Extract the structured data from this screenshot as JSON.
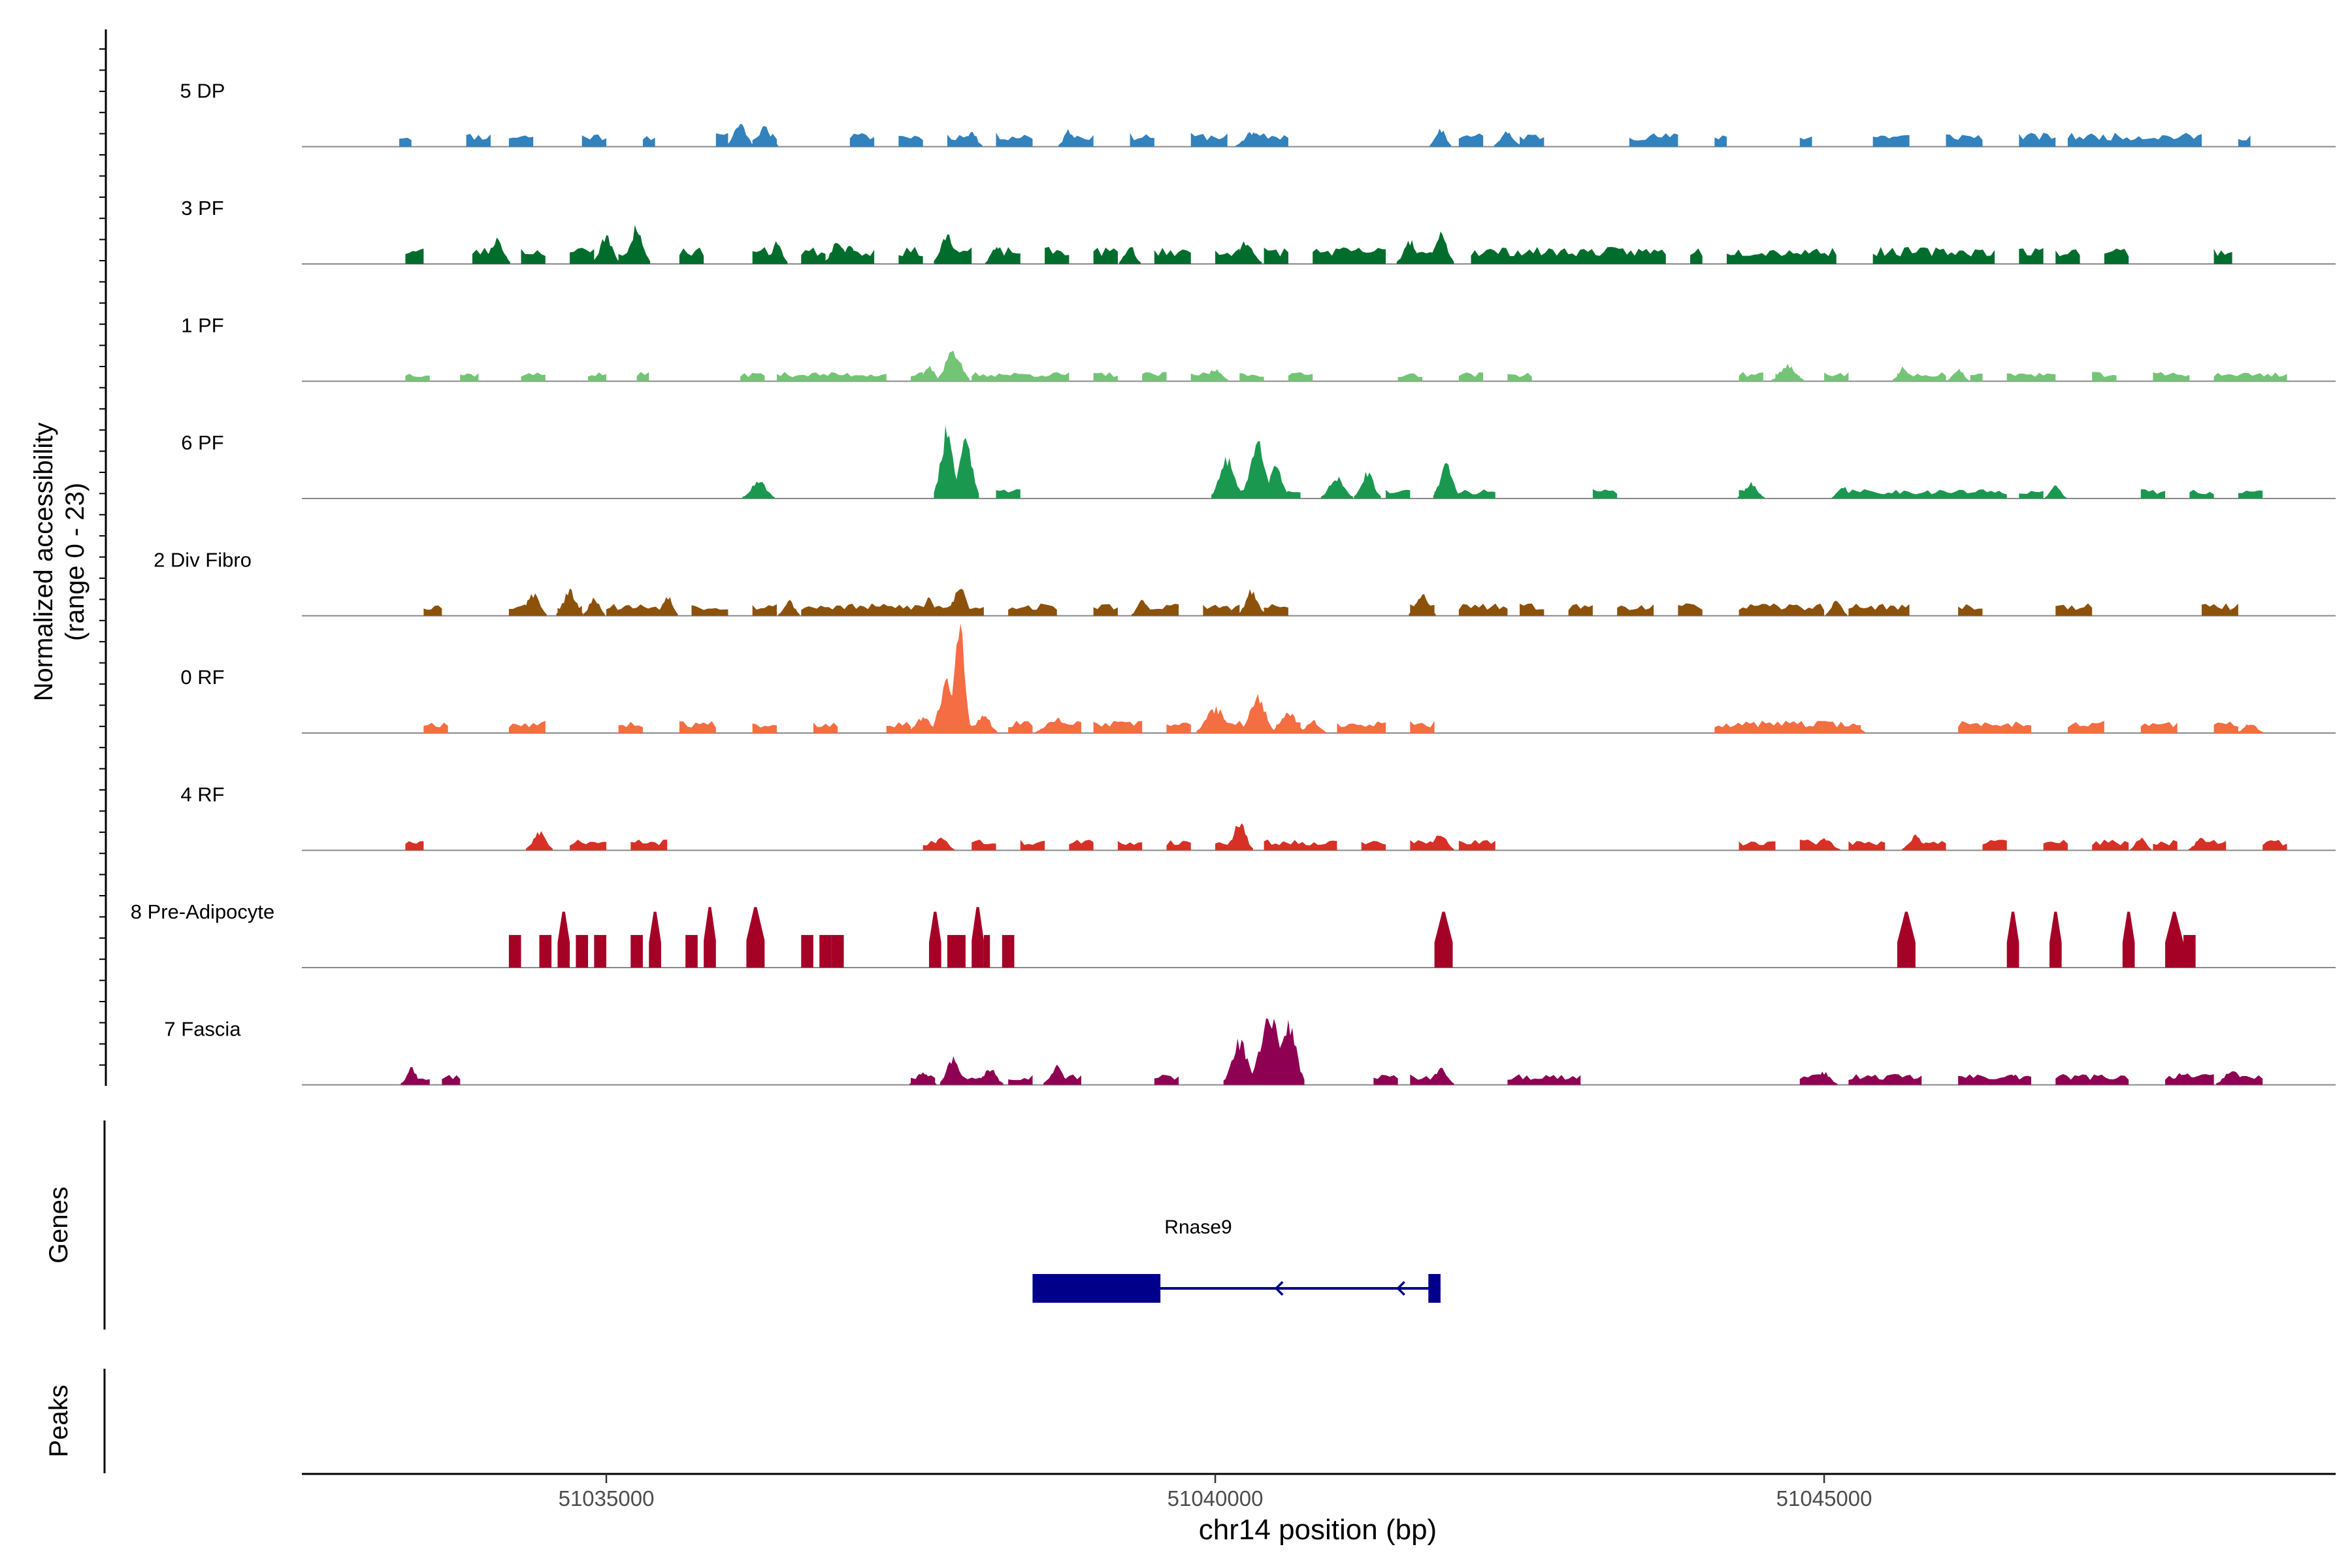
{
  "chart_data": {
    "type": "area",
    "title": "",
    "ylabel_line1": "Normalized accessibility",
    "ylabel_line2": "(range 0 - 23)",
    "xlabel": "chr14 position (bp)",
    "xlim": [
      51032500,
      51049200
    ],
    "ylim": [
      0,
      23
    ],
    "xticks": [
      51035000,
      51040000,
      51045000
    ],
    "xtick_labels": [
      "51035000",
      "51040000",
      "51045000"
    ],
    "gene_panel_label": "Genes",
    "peak_panel_label": "Peaks",
    "gene": {
      "name": "Rnase9",
      "start": 51038500,
      "end": 51041850,
      "strand": "-",
      "exons": [
        [
          51038500,
          51039550
        ],
        [
          51041750,
          51041850
        ]
      ],
      "color": "#00008B"
    },
    "tracks": [
      {
        "name": "5 DP",
        "color": "#3182BD",
        "seed": 11,
        "base": [
          51033300,
          51033400,
          51033850,
          51034050,
          51034200,
          51034400,
          51034800,
          51035000,
          51035300,
          51035400,
          51035900,
          51036000,
          51036200,
          51036400,
          51037000,
          51037200,
          51037400,
          51037600,
          51037800,
          51038000,
          51038200,
          51038500,
          51038800,
          51039000,
          51039300,
          51039500,
          51039800,
          51040100,
          51040300,
          51040600,
          51042000,
          51042200,
          51042500,
          51042700,
          51043400,
          51043800,
          51044100,
          51044200,
          51044800,
          51044900,
          51045400,
          51045700,
          51046000,
          51046300,
          51046600,
          51046900,
          51047000,
          51048100,
          51048400,
          51048500,
          51048800
        ],
        "base_h": 0.9,
        "peaks": [
          [
            51036100,
            1.8,
            50
          ],
          [
            51036300,
            1.5,
            50
          ],
          [
            51038000,
            1.2,
            40
          ],
          [
            51038800,
            1.3,
            40
          ],
          [
            51040300,
            1.1,
            60
          ],
          [
            51041850,
            1.4,
            40
          ],
          [
            51042400,
            1.2,
            50
          ]
        ]
      },
      {
        "name": "3 PF",
        "color": "#006D2C",
        "seed": 23,
        "base": [
          51033350,
          51033500,
          51033900,
          51034100,
          51034300,
          51034500,
          51034700,
          51034900,
          51035100,
          51035300,
          51035600,
          51035800,
          51036200,
          51036400,
          51036600,
          51036800,
          51037000,
          51037200,
          51037400,
          51037600,
          51037800,
          51038000,
          51038200,
          51038400,
          51038600,
          51038800,
          51039000,
          51039200,
          51039500,
          51039800,
          51040000,
          51040200,
          51040400,
          51040600,
          51040800,
          51041400,
          51041600,
          51041800,
          51042100,
          51043700,
          51043900,
          51044000,
          51044200,
          51045100,
          51045400,
          51046400,
          51046600,
          51046800,
          51046900,
          51047100,
          51047300,
          51047500,
          51048200,
          51048350,
          51048800
        ],
        "base_h": 1.1,
        "peaks": [
          [
            51034100,
            2.0,
            50
          ],
          [
            51035000,
            2.2,
            50
          ],
          [
            51035250,
            3.0,
            50
          ],
          [
            51036400,
            1.8,
            40
          ],
          [
            51036900,
            1.8,
            50
          ],
          [
            51037000,
            1.5,
            40
          ],
          [
            51037800,
            2.5,
            50
          ],
          [
            51038200,
            1.4,
            40
          ],
          [
            51039300,
            1.5,
            40
          ],
          [
            51040250,
            1.8,
            60
          ],
          [
            51041600,
            1.8,
            50
          ],
          [
            51041850,
            2.4,
            50
          ]
        ]
      },
      {
        "name": "1 PF",
        "color": "#74C476",
        "seed": 37,
        "base": [
          51033350,
          51033550,
          51033800,
          51033950,
          51034300,
          51034500,
          51034850,
          51035000,
          51035250,
          51035350,
          51036100,
          51036300,
          51036400,
          51037300,
          51037500,
          51037600,
          51037800,
          51037950,
          51038000,
          51038800,
          51039000,
          51039200,
          51039400,
          51039600,
          51039800,
          51040000,
          51040200,
          51040400,
          51040600,
          51040800,
          51041500,
          51041700,
          51042000,
          51042200,
          51042400,
          51042600,
          51044300,
          51044500,
          51044600,
          51044800,
          51045000,
          51045200,
          51045600,
          51046000,
          51046200,
          51046300,
          51046500,
          51046900,
          51047200,
          51047400,
          51047700,
          51048000,
          51048200,
          51048800
        ],
        "base_h": 0.6,
        "peaks": [
          [
            51037850,
            2.5,
            60
          ],
          [
            51037650,
            1.2,
            40
          ],
          [
            51040000,
            1.0,
            50
          ],
          [
            51044700,
            1.3,
            60
          ],
          [
            51045650,
            1.1,
            40
          ],
          [
            51046100,
            1.0,
            40
          ]
        ]
      },
      {
        "name": "6 PF",
        "color": "#1A9850",
        "seed": 41,
        "base": [
          51036200,
          51036300,
          51037850,
          51038050,
          51038200,
          51038400,
          51040100,
          51040300,
          51040500,
          51040700,
          51041400,
          51041600,
          51041800,
          51042300,
          51043100,
          51043300,
          51044300,
          51044400,
          51045200,
          51046500,
          51046600,
          51046800,
          51047600,
          51047800,
          51048000,
          51048200,
          51048400,
          51048600
        ],
        "base_h": 0.6,
        "peaks": [
          [
            51036250,
            1.4,
            60
          ],
          [
            51037800,
            5.5,
            50
          ],
          [
            51037950,
            5.0,
            50
          ],
          [
            51040100,
            3.2,
            60
          ],
          [
            51040350,
            4.5,
            60
          ],
          [
            51040500,
            2.5,
            50
          ],
          [
            51041000,
            1.7,
            60
          ],
          [
            51041250,
            2.0,
            50
          ],
          [
            51041900,
            2.8,
            50
          ],
          [
            51044400,
            1.2,
            50
          ],
          [
            51045150,
            1.0,
            40
          ],
          [
            51046900,
            1.0,
            40
          ]
        ]
      },
      {
        "name": "2 Div Fibro",
        "color": "#8C510A",
        "seed": 53,
        "base": [
          51033500,
          51033650,
          51034200,
          51034400,
          51034600,
          51034800,
          51035000,
          51035500,
          51035700,
          51036000,
          51036200,
          51036400,
          51036600,
          51037600,
          51037700,
          51038100,
          51038300,
          51038700,
          51039000,
          51039200,
          51039400,
          51039700,
          51039900,
          51040200,
          51040400,
          51040600,
          51041600,
          51041800,
          51042000,
          51042400,
          51042500,
          51042700,
          51042900,
          51043100,
          51043300,
          51043600,
          51043800,
          51044000,
          51044300,
          51045000,
          51045200,
          51045700,
          51046100,
          51046300,
          51046900,
          51047200,
          51048100,
          51048400
        ],
        "base_h": 0.8,
        "peaks": [
          [
            51034400,
            1.8,
            50
          ],
          [
            51034700,
            2.0,
            50
          ],
          [
            51034900,
            1.5,
            40
          ],
          [
            51035500,
            1.6,
            40
          ],
          [
            51036500,
            1.3,
            40
          ],
          [
            51037650,
            1.5,
            40
          ],
          [
            51037900,
            2.3,
            50
          ],
          [
            51039400,
            1.2,
            40
          ],
          [
            51040300,
            2.0,
            50
          ],
          [
            51041700,
            1.7,
            50
          ],
          [
            51045100,
            1.2,
            40
          ]
        ]
      },
      {
        "name": "0 RF",
        "color": "#F46D43",
        "seed": 67,
        "base": [
          51033500,
          51033700,
          51034200,
          51034500,
          51035100,
          51035300,
          51035600,
          51035900,
          51036200,
          51036400,
          51036700,
          51036900,
          51037300,
          51037500,
          51037700,
          51038100,
          51038300,
          51038500,
          51038700,
          51038900,
          51039000,
          51039400,
          51039600,
          51039800,
          51040000,
          51040300,
          51040500,
          51040700,
          51041000,
          51041400,
          51041600,
          51041800,
          51044100,
          51045300,
          51046100,
          51046700,
          51047000,
          51047300,
          51047600,
          51047900,
          51048200,
          51048400,
          51048600
        ],
        "base_h": 0.8,
        "peaks": [
          [
            51037900,
            8.5,
            40
          ],
          [
            51037800,
            4.0,
            60
          ],
          [
            51037600,
            1.3,
            60
          ],
          [
            51038100,
            1.5,
            50
          ],
          [
            51038700,
            1.2,
            80
          ],
          [
            51040000,
            2.0,
            70
          ],
          [
            51040350,
            3.0,
            60
          ],
          [
            51040600,
            1.8,
            60
          ],
          [
            51040800,
            1.0,
            50
          ],
          [
            51045250,
            0.8,
            40
          ],
          [
            51048500,
            0.8,
            50
          ]
        ]
      },
      {
        "name": "4 RF",
        "color": "#D73027",
        "seed": 71,
        "base": [
          51033350,
          51033500,
          51034400,
          51034500,
          51034700,
          51035000,
          51035200,
          51035500,
          51037600,
          51037800,
          51038000,
          51038200,
          51038400,
          51038600,
          51038800,
          51039000,
          51039200,
          51039400,
          51039600,
          51039800,
          51040000,
          51040200,
          51040400,
          51041000,
          51041200,
          51041400,
          51041600,
          51041800,
          51042000,
          51042300,
          51044300,
          51044600,
          51044800,
          51045000,
          51045200,
          51045500,
          51045800,
          51046000,
          51046300,
          51046500,
          51046800,
          51047000,
          51047200,
          51047500,
          51047700,
          51047900,
          51048100,
          51048300,
          51048600,
          51048800
        ],
        "base_h": 0.7,
        "peaks": [
          [
            51034450,
            1.5,
            50
          ],
          [
            51037750,
            1.0,
            50
          ],
          [
            51040200,
            2.2,
            50
          ],
          [
            51041850,
            1.3,
            50
          ],
          [
            51045000,
            1.0,
            60
          ],
          [
            51045750,
            1.2,
            50
          ],
          [
            51047600,
            1.0,
            40
          ],
          [
            51048100,
            1.0,
            50
          ]
        ]
      },
      {
        "name": "8 Pre-Adipocyte",
        "color": "#A50026",
        "seed": 83,
        "base": [],
        "base_h": 0,
        "spikes": [
          [
            51034200,
            51034300,
            3.5
          ],
          [
            51034450,
            51034550,
            3.5
          ],
          [
            51034600,
            51034700,
            6.0
          ],
          [
            51034750,
            51034850,
            3.5
          ],
          [
            51034900,
            51035000,
            3.5
          ],
          [
            51035200,
            51035300,
            3.5
          ],
          [
            51035350,
            51035450,
            6.0
          ],
          [
            51035650,
            51035750,
            3.5
          ],
          [
            51035800,
            51035900,
            6.5
          ],
          [
            51036150,
            51036300,
            6.5
          ],
          [
            51036600,
            51036700,
            3.5
          ],
          [
            51036750,
            51036850,
            3.5
          ],
          [
            51036850,
            51036950,
            3.5
          ],
          [
            51037650,
            51037750,
            6.0
          ],
          [
            51037800,
            51037950,
            3.5
          ],
          [
            51038000,
            51038100,
            6.5
          ],
          [
            51038100,
            51038150,
            3.5
          ],
          [
            51038250,
            51038350,
            3.5
          ],
          [
            51041800,
            51041950,
            6.0
          ],
          [
            51045600,
            51045750,
            6.0
          ],
          [
            51046500,
            51046600,
            6.0
          ],
          [
            51046850,
            51046950,
            6.0
          ],
          [
            51047450,
            51047550,
            6.0
          ],
          [
            51047800,
            51047950,
            6.0
          ],
          [
            51047950,
            51048050,
            3.5
          ]
        ]
      },
      {
        "name": "7 Fascia",
        "color": "#8E0152",
        "seed": 97,
        "base": [
          51033400,
          51033550,
          51033650,
          51033800,
          51037500,
          51037700,
          51037900,
          51038100,
          51038300,
          51038500,
          51038700,
          51038900,
          51039500,
          51039700,
          51041300,
          51041500,
          51041600,
          51041800,
          51042400,
          51043000,
          51044800,
          51045000,
          51045200,
          51045800,
          51046100,
          51046700,
          51046900,
          51047500,
          51047800,
          51048200,
          51048400,
          51048600
        ],
        "base_h": 0.7,
        "peaks": [
          [
            51033400,
            1.3,
            40
          ],
          [
            51037600,
            1.0,
            50
          ],
          [
            51037850,
            2.2,
            50
          ],
          [
            51038150,
            1.3,
            50
          ],
          [
            51038700,
            1.5,
            50
          ],
          [
            51040200,
            3.5,
            60
          ],
          [
            51040450,
            5.5,
            80
          ],
          [
            51040600,
            5.0,
            60
          ],
          [
            51041850,
            1.3,
            50
          ],
          [
            51045000,
            1.0,
            50
          ],
          [
            51046550,
            0.8,
            60
          ],
          [
            51047950,
            1.0,
            60
          ],
          [
            51048350,
            1.2,
            60
          ]
        ]
      }
    ]
  }
}
